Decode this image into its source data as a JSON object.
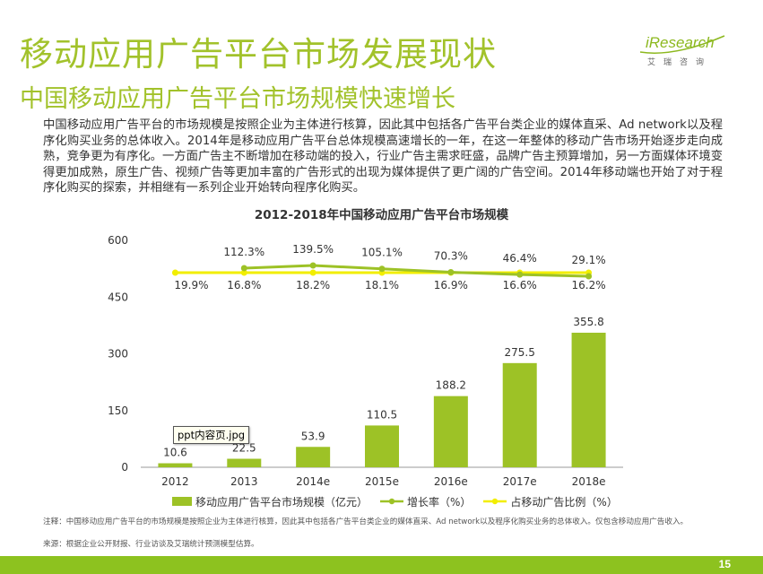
{
  "slide": {
    "title": "移动应用广告平台市场发展现状",
    "subtitle": "中国移动应用广告平台市场规模快速增长",
    "body": "中国移动应用广告平台的市场规模是按照企业为主体进行核算，因此其中包括各广告平台类企业的媒体直采、Ad network以及程序化购买业务的总体收入。2014年是移动应用广告平台总体规模高速增长的一年，在这一年整体的移动广告市场开始逐步走向成熟，竞争更为有序化。一方面广告主不断增加在移动端的投入，行业广告主需求旺盛，品牌广告主预算增加，另一方面媒体环境变得更加成熟，原生广告、视频广告等更加丰富的广告形式的出现为媒体提供了更广阔的广告空间。2014年移动端也开始了对于程序化购买的探索，并相继有一系列企业开始转向程序化购买。",
    "note": "注释：中国移动应用广告平台的市场规模是按照企业为主体进行核算，因此其中包括各广告平台类企业的媒体直采、Ad network以及程序化购买业务的总体收入。仅包含移动应用广告收入。",
    "source": "来源：根据企业公开财报、行业访谈及艾瑞统计预测模型估算。",
    "page_number": "15",
    "tooltip": "ppt内容页.jpg"
  },
  "logo": {
    "word": "iResearch",
    "cn": "艾瑞咨询"
  },
  "colors": {
    "accent": "#a2c22b",
    "bar": "#9dc226",
    "growth_line": "#9dc226",
    "share_line": "#f2ee00",
    "footer": "#8dc21f"
  },
  "chart_data": {
    "type": "bar",
    "title": "2012-2018年中国移动应用广告平台市场规模",
    "categories": [
      "2012",
      "2013",
      "2014e",
      "2015e",
      "2016e",
      "2017e",
      "2018e"
    ],
    "ylim": [
      0,
      600
    ],
    "yticks": [
      0,
      150,
      300,
      450,
      600
    ],
    "series": [
      {
        "name": "移动应用广告平台市场规模（亿元）",
        "kind": "bar",
        "values": [
          10.6,
          22.5,
          53.9,
          110.5,
          188.2,
          275.5,
          355.8
        ],
        "labels": [
          "10.6",
          "22.5",
          "53.9",
          "110.5",
          "188.2",
          "275.5",
          "355.8"
        ]
      },
      {
        "name": "增长率（%）",
        "kind": "line",
        "values": [
          null,
          112.3,
          139.5,
          105.1,
          70.3,
          46.4,
          29.1
        ],
        "labels": [
          "",
          "112.3%",
          "139.5%",
          "105.1%",
          "70.3%",
          "46.4%",
          "29.1%"
        ]
      },
      {
        "name": "占移动广告比例（%）",
        "kind": "line",
        "values": [
          19.9,
          16.8,
          18.2,
          18.1,
          16.9,
          16.6,
          16.2
        ],
        "labels": [
          "19.9%",
          "16.8%",
          "18.2%",
          "18.1%",
          "16.9%",
          "16.6%",
          "16.2%"
        ]
      }
    ]
  }
}
